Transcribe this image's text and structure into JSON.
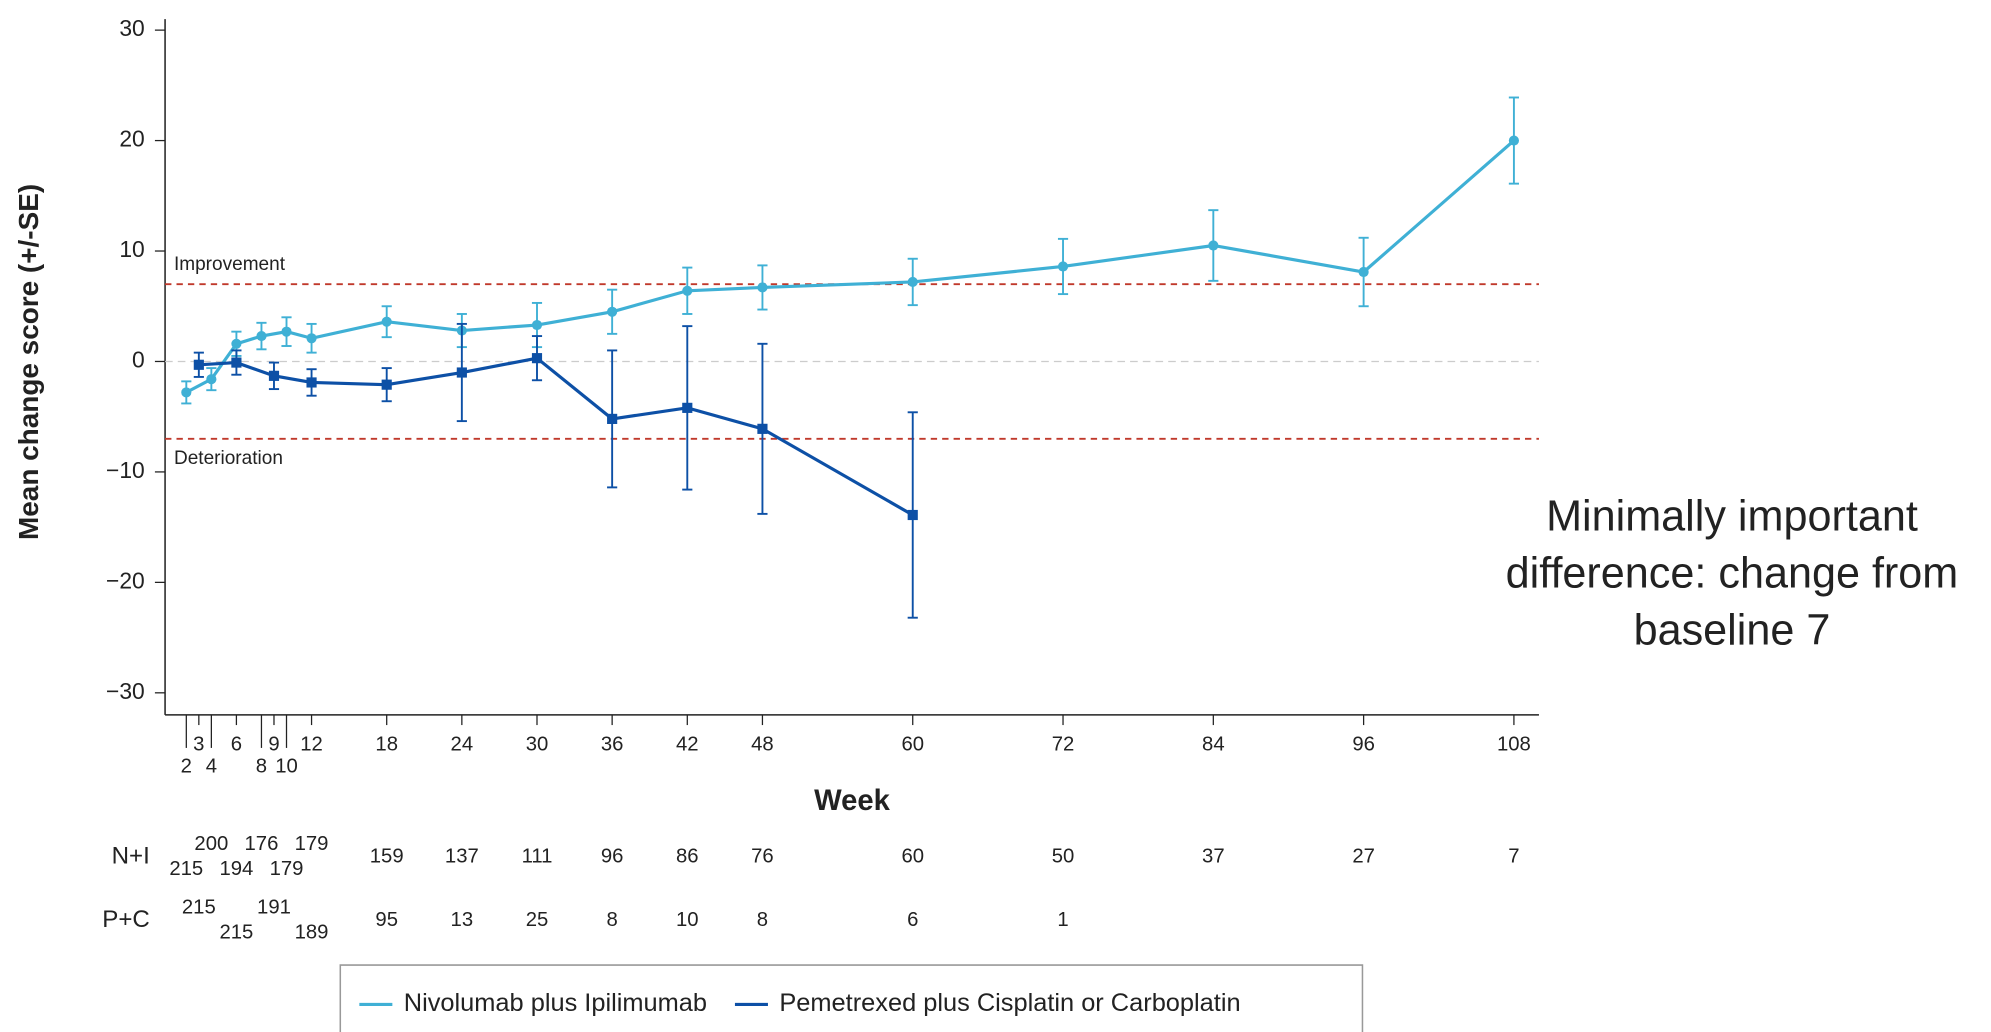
{
  "chart_data": {
    "type": "line",
    "x_label": "Week",
    "y_label": "Mean change score (+/-SE)",
    "annotation": "Minimally important difference: change from baseline 7",
    "xlim": [
      0,
      110
    ],
    "ylim": [
      -32,
      31
    ],
    "xticks": [
      2,
      3,
      4,
      6,
      8,
      9,
      10,
      12,
      18,
      24,
      30,
      36,
      42,
      48,
      60,
      72,
      84,
      96,
      108
    ],
    "yticks": [
      {
        "value": -30,
        "label": "−30"
      },
      {
        "value": -20,
        "label": "−20"
      },
      {
        "value": -10,
        "label": "−10"
      },
      0,
      10,
      20,
      30
    ],
    "zero_line": true,
    "reference_lines": [
      {
        "value": 7,
        "label": "Improvement"
      },
      {
        "value": -7,
        "label": "Deterioration"
      }
    ],
    "series": [
      {
        "name": "Nivolumab plus Ipilimumab",
        "color": "#3fb0d5",
        "marker": "circle",
        "x": [
          2,
          4,
          6,
          8,
          10,
          12,
          18,
          24,
          30,
          36,
          42,
          48,
          60,
          72,
          84,
          96,
          108
        ],
        "values": [
          -2.8,
          -1.6,
          1.6,
          2.3,
          2.7,
          2.1,
          3.6,
          2.8,
          3.3,
          4.5,
          6.4,
          6.7,
          7.2,
          8.6,
          10.5,
          8.1,
          20
        ],
        "errors": [
          1,
          1,
          1.1,
          1.2,
          1.3,
          1.3,
          1.4,
          1.5,
          2,
          2,
          2.1,
          2,
          2.1,
          2.5,
          3.2,
          3.1,
          3.9
        ]
      },
      {
        "name": "Pemetrexed plus Cisplatin or Carboplatin",
        "color": "#0d50a6",
        "marker": "square",
        "x": [
          3,
          6,
          9,
          12,
          18,
          24,
          30,
          36,
          42,
          48,
          60
        ],
        "values": [
          -0.3,
          -0.1,
          -1.3,
          -1.9,
          -2.1,
          -1,
          0.3,
          -5.2,
          -4.2,
          -6.1,
          -13.9
        ],
        "errors": [
          1.1,
          1.1,
          1.2,
          1.2,
          1.5,
          4.4,
          2,
          6.2,
          7.4,
          7.7,
          9.3
        ]
      }
    ],
    "at_risk": [
      {
        "label": "N+I",
        "x": [
          2,
          4,
          6,
          8,
          10,
          12,
          18,
          24,
          30,
          36,
          42,
          48,
          60,
          72,
          84,
          96,
          108
        ],
        "counts": [
          215,
          200,
          194,
          176,
          179,
          179,
          159,
          137,
          111,
          96,
          86,
          76,
          60,
          50,
          37,
          27,
          7
        ]
      },
      {
        "label": "P+C",
        "x": [
          3,
          6,
          9,
          12,
          18,
          24,
          30,
          36,
          42,
          48,
          60,
          72
        ],
        "counts": [
          215,
          215,
          191,
          189,
          95,
          13,
          25,
          8,
          10,
          8,
          6,
          1
        ]
      }
    ]
  }
}
